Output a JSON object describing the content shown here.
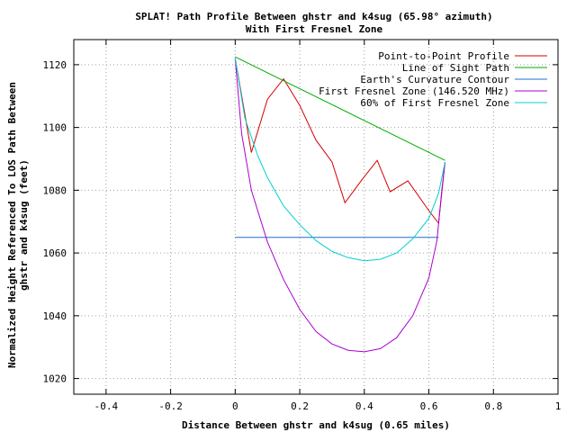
{
  "chart_data": {
    "type": "line",
    "title": "SPLAT! Path Profile Between ghstr and k4sug (65.98° azimuth)",
    "subtitle": "With First Fresnel Zone",
    "xlabel": "Distance Between ghstr and k4sug (0.65 miles)",
    "ylabel_line1": "Normalized Height Referenced To LOS Path Between",
    "ylabel_line2": "ghstr and k4sug (feet)",
    "xlim": [
      -0.5,
      1.0
    ],
    "ylim": [
      1015,
      1128
    ],
    "x_ticks": [
      -0.4,
      -0.2,
      0,
      0.2,
      0.4,
      0.6,
      0.8,
      1
    ],
    "x_tick_labels": [
      "-0.4",
      "-0.2",
      "0",
      "0.2",
      "0.4",
      "0.6",
      "0.8",
      "1"
    ],
    "y_ticks": [
      1020,
      1040,
      1060,
      1080,
      1100,
      1120
    ],
    "y_tick_labels": [
      "1020",
      "1040",
      "1060",
      "1080",
      "1100",
      "1120"
    ],
    "grid": true,
    "legend_position": "top-right",
    "series": [
      {
        "name": "Point-to-Point Profile",
        "color": "#d40000",
        "x": [
          0,
          0.027,
          0.05,
          0.1,
          0.15,
          0.2,
          0.25,
          0.3,
          0.34,
          0.39,
          0.44,
          0.48,
          0.535,
          0.6,
          0.63,
          0.65
        ],
        "y": [
          1122,
          1106,
          1092,
          1109,
          1115.5,
          1107,
          1096,
          1089,
          1076,
          1083,
          1089.5,
          1079.5,
          1083,
          1073.5,
          1069.5,
          1089
        ]
      },
      {
        "name": "Line of Sight Path",
        "color": "#00aa00",
        "x": [
          0,
          0.65
        ],
        "y": [
          1122.5,
          1089.5
        ]
      },
      {
        "name": "Earth's Curvature Contour",
        "color": "#1f6fcf",
        "x": [
          0,
          0.63
        ],
        "y": [
          1065,
          1065
        ]
      },
      {
        "name": "First Fresnel Zone (146.520 MHz)",
        "color": "#aa00cc",
        "x": [
          0,
          0.02,
          0.05,
          0.1,
          0.15,
          0.2,
          0.25,
          0.3,
          0.35,
          0.4,
          0.45,
          0.5,
          0.55,
          0.6,
          0.625,
          0.64,
          0.65
        ],
        "y": [
          1122,
          1098,
          1080,
          1063.5,
          1051.5,
          1042,
          1035,
          1031,
          1029,
          1028.5,
          1029.5,
          1033,
          1040,
          1052,
          1064,
          1080,
          1089
        ]
      },
      {
        "name": "60% of First Fresnel Zone",
        "color": "#00d0d0",
        "x": [
          0,
          0.03,
          0.07,
          0.1,
          0.15,
          0.2,
          0.25,
          0.3,
          0.35,
          0.4,
          0.45,
          0.5,
          0.55,
          0.6,
          0.63,
          0.65
        ],
        "y": [
          1122,
          1103,
          1091,
          1084,
          1075,
          1069,
          1064,
          1060.5,
          1058.5,
          1057.5,
          1058,
          1060,
          1064.5,
          1071,
          1079,
          1089
        ]
      }
    ]
  }
}
